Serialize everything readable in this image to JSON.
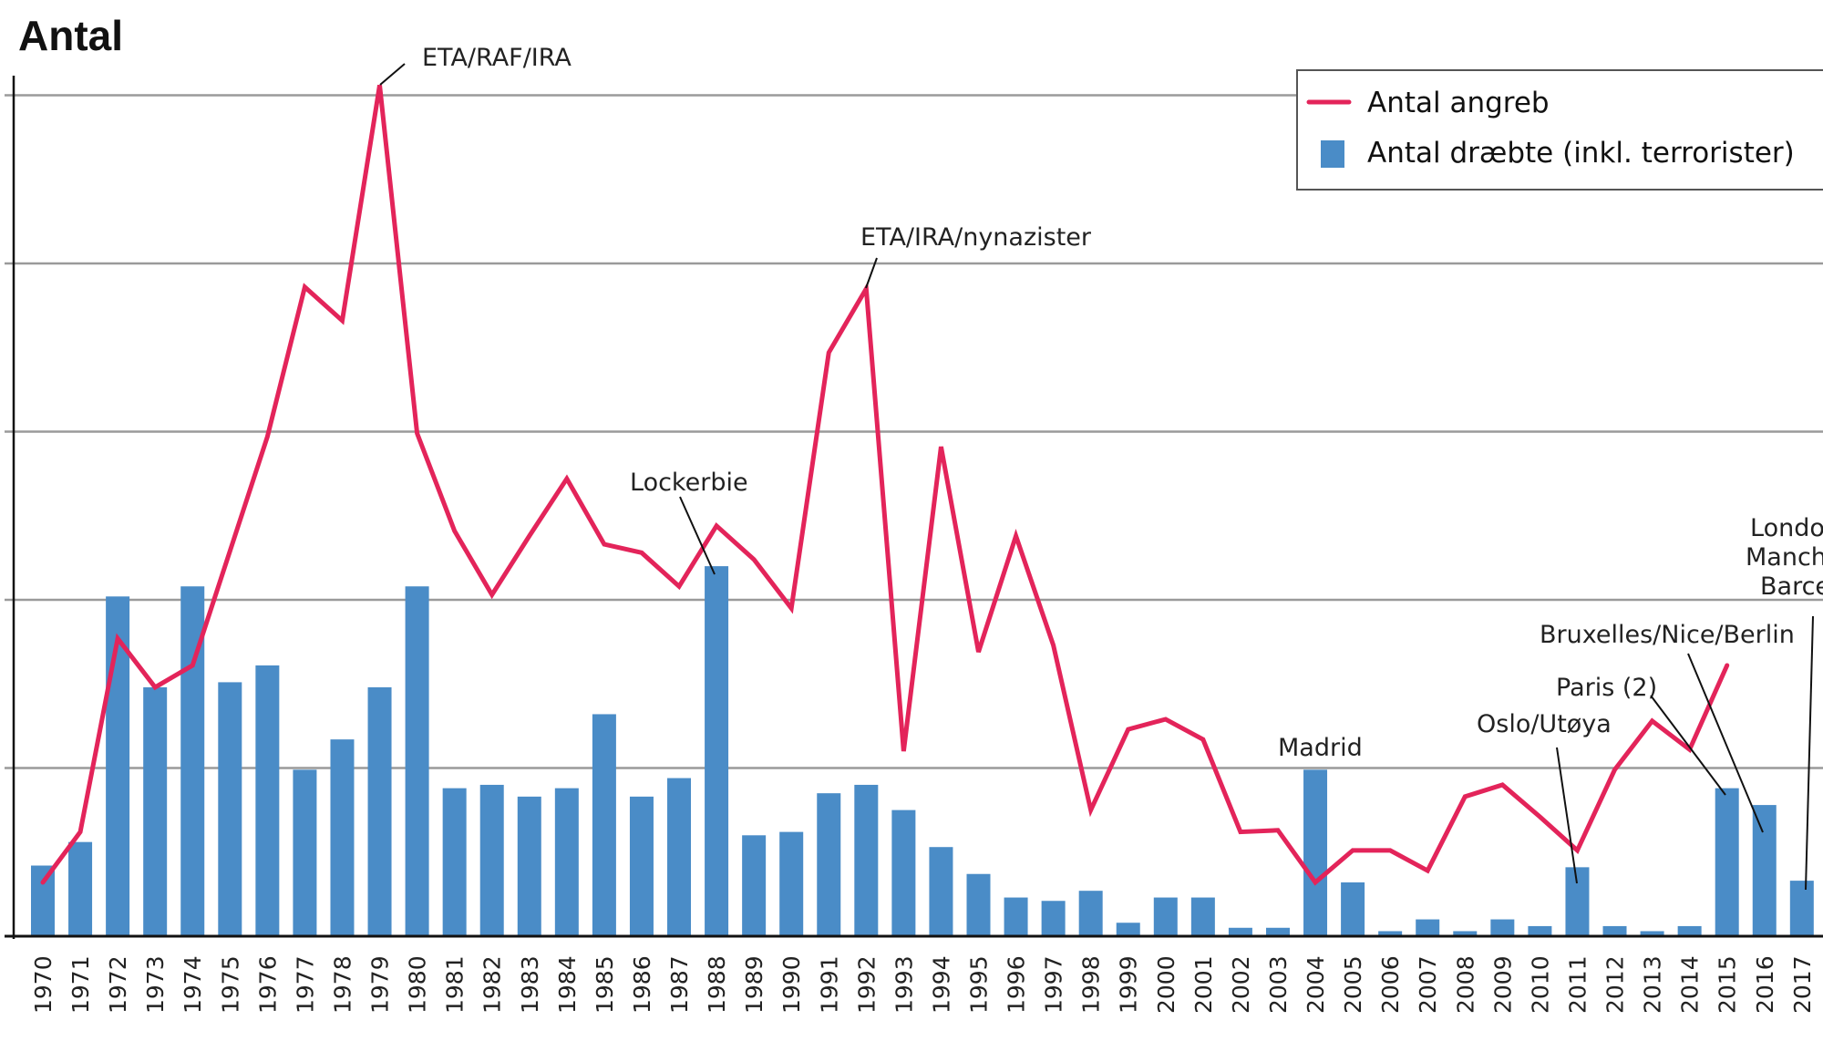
{
  "chart_data": {
    "type": "bar+line",
    "title": "Antal",
    "xlabel": "",
    "ylabel": "",
    "y_unit_note": "",
    "ylim": [
      0,
      5
    ],
    "grid": true,
    "legend_position": "top-right",
    "categories": [
      "1970",
      "1971",
      "1972",
      "1973",
      "1974",
      "1975",
      "1976",
      "1977",
      "1978",
      "1979",
      "1980",
      "1981",
      "1982",
      "1983",
      "1984",
      "1985",
      "1986",
      "1987",
      "1988",
      "1989",
      "1990",
      "1991",
      "1992",
      "1993",
      "1994",
      "1995",
      "1996",
      "1997",
      "1998",
      "1999",
      "2000",
      "2001",
      "2002",
      "2003",
      "2004",
      "2005",
      "2006",
      "2007",
      "2008",
      "2009",
      "2010",
      "2011",
      "2012",
      "2013",
      "2014",
      "2015",
      "2016",
      "2017"
    ],
    "series": [
      {
        "name": "Antal angreb",
        "type": "line",
        "color": "#e3245a",
        "values": [
          0.32,
          0.62,
          1.77,
          1.48,
          1.61,
          2.29,
          2.97,
          3.86,
          3.66,
          5.06,
          2.99,
          2.41,
          2.03,
          2.38,
          2.72,
          2.33,
          2.28,
          2.08,
          2.44,
          2.24,
          1.95,
          3.47,
          3.85,
          1.1,
          2.91,
          1.69,
          2.38,
          1.73,
          0.75,
          1.23,
          1.29,
          1.17,
          0.62,
          0.63,
          0.32,
          0.51,
          0.51,
          0.39,
          0.83,
          0.9,
          0.71,
          0.51,
          0.99,
          1.28,
          1.11,
          1.61,
          null,
          null
        ]
      },
      {
        "name": "Antal dræbte (inkl. terrorister)",
        "type": "bar",
        "color": "#4a8cc7",
        "values": [
          0.42,
          0.56,
          2.02,
          1.48,
          2.08,
          1.51,
          1.61,
          0.99,
          1.17,
          1.48,
          2.08,
          0.88,
          0.9,
          0.83,
          0.88,
          1.32,
          0.83,
          0.94,
          2.2,
          0.6,
          0.62,
          0.85,
          0.9,
          0.75,
          0.53,
          0.37,
          0.23,
          0.21,
          0.27,
          0.08,
          0.23,
          0.23,
          0.05,
          0.05,
          0.99,
          0.32,
          0.03,
          0.1,
          0.03,
          0.1,
          0.06,
          0.41,
          0.06,
          0.03,
          0.06,
          0.88,
          0.78,
          0.33
        ]
      }
    ],
    "annotations": [
      {
        "text": "ETA/RAF/IRA",
        "category": "1979"
      },
      {
        "text": "ETA/IRA/nynazister",
        "category": "1992"
      },
      {
        "text": "Lockerbie",
        "category": "1988"
      },
      {
        "text": "Madrid",
        "category": "2004"
      },
      {
        "text": "Oslo/Utøya",
        "category": "2011"
      },
      {
        "text": "Paris (2)",
        "category": "2015"
      },
      {
        "text": "Bruxelles/Nice/Berlin",
        "category": "2016"
      },
      {
        "lines": [
          "London/",
          "Manchester/",
          "Barcelona"
        ],
        "category": "2017"
      }
    ]
  }
}
